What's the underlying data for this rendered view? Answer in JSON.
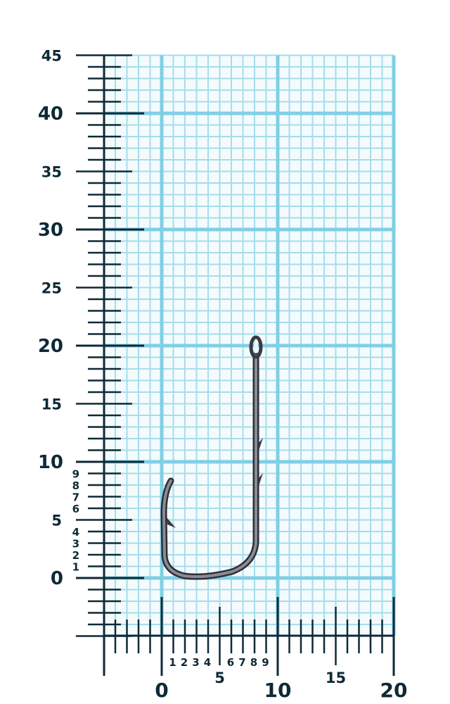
{
  "colors": {
    "grid_major": "#7fcfe6",
    "grid_minor": "#a6dcec",
    "ruler": "#0d2a36",
    "hook": "#4a4a55"
  },
  "subject_icon": "fishing-hook",
  "vertical_ruler": {
    "unit": "mm",
    "range": [
      0,
      45
    ],
    "major_labels": [
      "0",
      "10",
      "20",
      "30",
      "40"
    ],
    "mid_labels": [
      "5",
      "15",
      "25",
      "35",
      "45"
    ],
    "fine_labels": [
      "1",
      "2",
      "3",
      "4",
      "6",
      "7",
      "8",
      "9"
    ]
  },
  "horizontal_ruler": {
    "unit": "mm",
    "range": [
      0,
      20
    ],
    "major_labels": [
      "0",
      "10",
      "20"
    ],
    "mid_labels": [
      "5",
      "15"
    ],
    "fine_labels": [
      "1",
      "2",
      "3",
      "4",
      "6",
      "7",
      "8",
      "9"
    ]
  }
}
